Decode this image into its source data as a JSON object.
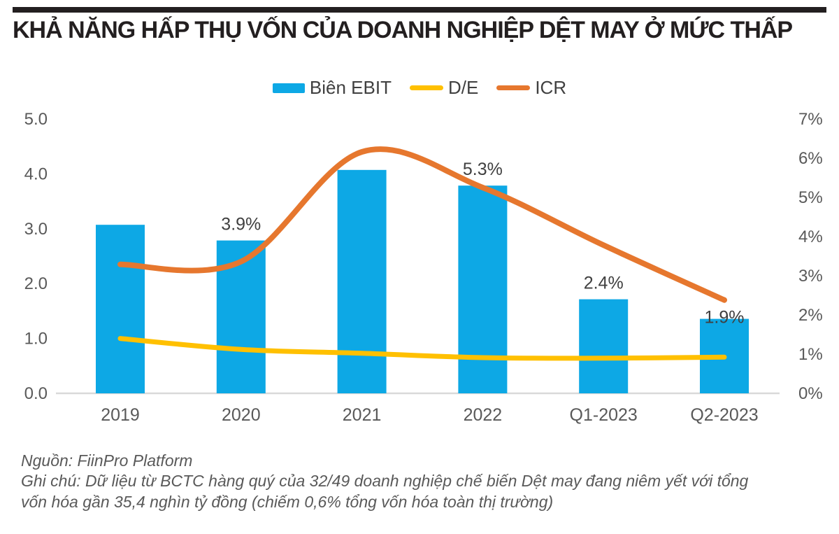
{
  "header": {
    "title": "KHẢ NĂNG HẤP THỤ VỐN CỦA DOANH NGHIỆP DỆT MAY Ở MỨC THẤP"
  },
  "colors": {
    "bar_blue": "#0DA8E5",
    "line_yellow": "#FFC000",
    "line_orange": "#E6772E",
    "title_black": "#231F20",
    "axis_gray": "#595959",
    "data_label_gray": "#404040",
    "baseline_gray": "#D9D9D9"
  },
  "chart_data": {
    "type": "combo",
    "categories": [
      "2019",
      "2020",
      "2021",
      "2022",
      "Q1-2023",
      "Q2-2023"
    ],
    "series": [
      {
        "name": "Biên EBIT",
        "type": "bar",
        "axis": "right",
        "unit": "%",
        "values": [
          4.3,
          3.9,
          5.7,
          5.3,
          2.4,
          1.9
        ],
        "data_labels": [
          null,
          "3.9%",
          null,
          "5.3%",
          "2.4%",
          "1.9%"
        ]
      },
      {
        "name": "D/E",
        "type": "line",
        "axis": "left",
        "values": [
          1.0,
          0.8,
          0.73,
          0.65,
          0.64,
          0.66
        ]
      },
      {
        "name": "ICR",
        "type": "line",
        "axis": "left",
        "values": [
          2.35,
          2.4,
          4.4,
          3.75,
          2.7,
          1.7
        ]
      }
    ],
    "left_axis": {
      "min": 0,
      "max": 5,
      "step": 1,
      "ticks": [
        "0.0",
        "1.0",
        "2.0",
        "3.0",
        "4.0",
        "5.0"
      ]
    },
    "right_axis": {
      "min": 0,
      "max": 7,
      "step": 1,
      "ticks": [
        "0%",
        "1%",
        "2%",
        "3%",
        "4%",
        "5%",
        "6%",
        "7%"
      ]
    },
    "legend": [
      {
        "label": "Biên EBIT",
        "swatch": "bar",
        "color_key": "bar_blue"
      },
      {
        "label": "D/E",
        "swatch": "line",
        "color_key": "line_yellow"
      },
      {
        "label": "ICR",
        "swatch": "line",
        "color_key": "line_orange"
      }
    ],
    "gridlines": "baseline-only",
    "legend_position": "top-center"
  },
  "footer": {
    "source": "Nguồn: FiinPro Platform",
    "note": "Ghi chú: Dữ liệu từ BCTC hàng quý của 32/49 doanh nghiệp chế biến Dệt may đang niêm yết với tổng vốn hóa gần 35,4 nghìn tỷ đồng (chiếm 0,6% tổng vốn hóa toàn thị trường)"
  }
}
